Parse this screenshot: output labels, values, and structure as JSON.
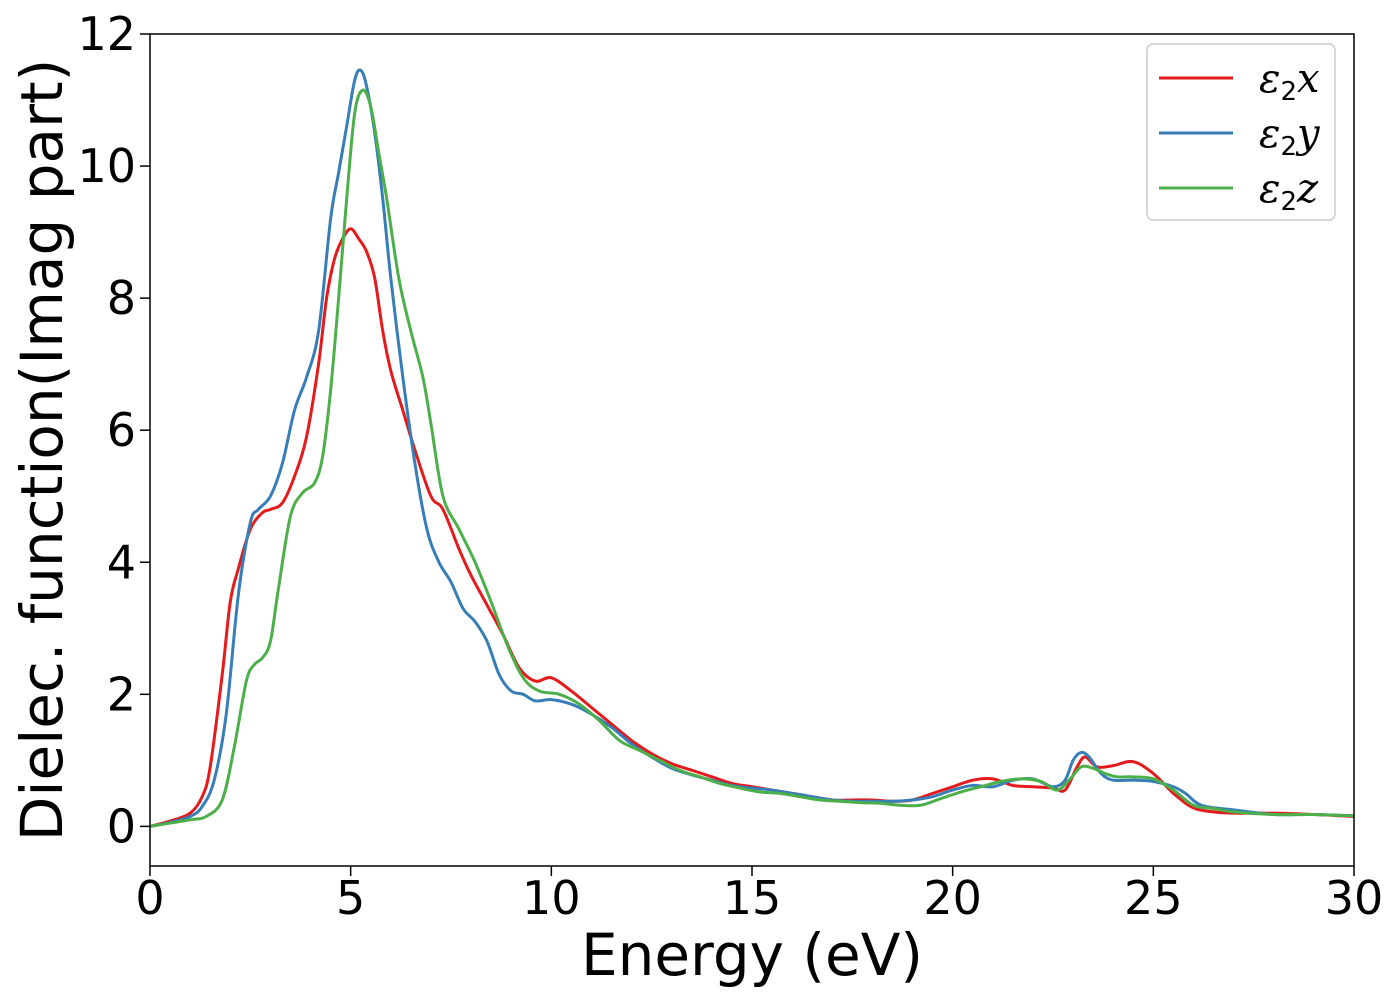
{
  "chart_data": {
    "type": "line",
    "title": "",
    "xlabel": "Energy (eV)",
    "ylabel": "Dielec. function(Imag part)",
    "xlim": [
      0,
      30
    ],
    "ylim": [
      -0.6,
      12
    ],
    "xticks": [
      0,
      5,
      10,
      15,
      20,
      25,
      30
    ],
    "yticks": [
      0,
      2,
      4,
      6,
      8,
      10,
      12
    ],
    "grid": false,
    "legend_position": "top-right",
    "series": [
      {
        "name": "ε2x",
        "legend": {
          "symbol": "ε",
          "sub": "2",
          "axis": "x"
        },
        "color": "#e41a1c",
        "x": [
          0,
          0.5,
          1.0,
          1.3,
          1.5,
          1.8,
          2.0,
          2.2,
          2.5,
          2.8,
          3.0,
          3.3,
          3.6,
          3.9,
          4.2,
          4.4,
          4.6,
          4.8,
          5.0,
          5.2,
          5.4,
          5.6,
          5.8,
          6.0,
          6.3,
          6.6,
          7.0,
          7.3,
          7.7,
          8.0,
          8.4,
          8.8,
          9.2,
          9.6,
          10.0,
          10.5,
          11.0,
          11.5,
          12.0,
          12.5,
          13.0,
          13.5,
          14.0,
          14.5,
          15.0,
          15.5,
          16.0,
          16.5,
          17.0,
          17.5,
          18.0,
          18.5,
          19.0,
          19.5,
          20.0,
          20.5,
          21.0,
          21.5,
          22.0,
          22.5,
          22.8,
          23.1,
          23.3,
          23.6,
          24.0,
          24.5,
          25.0,
          25.5,
          26.0,
          26.5,
          27.0,
          28.0,
          29.0,
          30.0
        ],
        "y": [
          0,
          0.08,
          0.2,
          0.45,
          0.9,
          2.3,
          3.4,
          3.9,
          4.5,
          4.75,
          4.8,
          4.9,
          5.3,
          5.9,
          7.0,
          8.0,
          8.6,
          8.9,
          9.05,
          8.9,
          8.7,
          8.3,
          7.5,
          6.9,
          6.3,
          5.7,
          5.0,
          4.8,
          4.2,
          3.8,
          3.35,
          2.9,
          2.4,
          2.2,
          2.25,
          2.05,
          1.8,
          1.55,
          1.3,
          1.1,
          0.95,
          0.85,
          0.75,
          0.65,
          0.6,
          0.55,
          0.5,
          0.45,
          0.4,
          0.4,
          0.4,
          0.38,
          0.4,
          0.5,
          0.6,
          0.7,
          0.72,
          0.62,
          0.6,
          0.58,
          0.55,
          0.9,
          1.05,
          0.9,
          0.92,
          0.98,
          0.8,
          0.5,
          0.28,
          0.22,
          0.2,
          0.2,
          0.18,
          0.15
        ]
      },
      {
        "name": "ε2y",
        "legend": {
          "symbol": "ε",
          "sub": "2",
          "axis": "y"
        },
        "color": "#377eb8",
        "x": [
          0,
          0.5,
          1.0,
          1.3,
          1.6,
          1.9,
          2.2,
          2.5,
          2.7,
          3.0,
          3.3,
          3.6,
          3.9,
          4.2,
          4.5,
          4.7,
          4.9,
          5.1,
          5.25,
          5.4,
          5.6,
          5.8,
          6.0,
          6.3,
          6.6,
          6.9,
          7.2,
          7.5,
          7.8,
          8.1,
          8.4,
          8.7,
          9.0,
          9.3,
          9.6,
          10.0,
          10.5,
          11.0,
          11.5,
          12.0,
          12.5,
          13.0,
          13.5,
          14.0,
          14.5,
          15.0,
          15.5,
          16.0,
          16.5,
          17.0,
          17.5,
          18.0,
          18.5,
          19.0,
          19.5,
          20.0,
          20.5,
          21.0,
          21.5,
          22.0,
          22.5,
          22.8,
          23.0,
          23.2,
          23.4,
          23.7,
          24.0,
          24.5,
          25.0,
          25.5,
          25.8,
          26.2,
          27.0,
          28.0,
          29.0,
          30.0
        ],
        "y": [
          0,
          0.06,
          0.15,
          0.3,
          0.7,
          1.7,
          3.5,
          4.6,
          4.8,
          5.0,
          5.5,
          6.3,
          6.8,
          7.5,
          9.2,
          9.9,
          10.6,
          11.3,
          11.45,
          11.2,
          10.5,
          9.5,
          8.3,
          6.8,
          5.5,
          4.5,
          4.0,
          3.7,
          3.3,
          3.1,
          2.8,
          2.3,
          2.05,
          2.0,
          1.9,
          1.92,
          1.85,
          1.7,
          1.5,
          1.25,
          1.05,
          0.88,
          0.78,
          0.7,
          0.62,
          0.58,
          0.55,
          0.5,
          0.45,
          0.4,
          0.38,
          0.38,
          0.38,
          0.4,
          0.45,
          0.55,
          0.62,
          0.6,
          0.7,
          0.72,
          0.6,
          0.7,
          1.0,
          1.12,
          1.05,
          0.8,
          0.7,
          0.7,
          0.68,
          0.6,
          0.5,
          0.32,
          0.25,
          0.18,
          0.18,
          0.16
        ]
      },
      {
        "name": "ε2z",
        "legend": {
          "symbol": "ε",
          "sub": "2",
          "axis": "z"
        },
        "color": "#4daf4a",
        "x": [
          0,
          0.5,
          1.0,
          1.4,
          1.8,
          2.1,
          2.4,
          2.6,
          2.8,
          3.0,
          3.2,
          3.5,
          3.8,
          4.1,
          4.3,
          4.5,
          4.7,
          4.9,
          5.1,
          5.3,
          5.5,
          5.7,
          5.9,
          6.2,
          6.5,
          6.8,
          7.0,
          7.3,
          7.7,
          8.1,
          8.5,
          8.9,
          9.3,
          9.7,
          10.2,
          10.7,
          11.2,
          11.7,
          12.2,
          12.7,
          13.2,
          13.7,
          14.2,
          14.7,
          15.2,
          15.7,
          16.2,
          16.7,
          17.2,
          17.7,
          18.2,
          18.7,
          19.2,
          19.7,
          20.2,
          20.7,
          21.2,
          21.7,
          22.2,
          22.6,
          22.9,
          23.2,
          23.5,
          23.8,
          24.1,
          24.5,
          25.0,
          25.5,
          26.0,
          26.5,
          27.0,
          28.0,
          29.0,
          30.0
        ],
        "y": [
          0,
          0.05,
          0.1,
          0.15,
          0.4,
          1.2,
          2.2,
          2.45,
          2.55,
          2.8,
          3.6,
          4.7,
          5.05,
          5.2,
          5.6,
          6.6,
          8.0,
          9.5,
          10.8,
          11.15,
          10.9,
          10.2,
          9.5,
          8.3,
          7.5,
          6.8,
          6.1,
          5.0,
          4.5,
          4.0,
          3.4,
          2.75,
          2.25,
          2.05,
          2.0,
          1.85,
          1.6,
          1.3,
          1.15,
          1.0,
          0.85,
          0.75,
          0.65,
          0.58,
          0.52,
          0.5,
          0.45,
          0.4,
          0.38,
          0.36,
          0.35,
          0.32,
          0.32,
          0.42,
          0.52,
          0.6,
          0.68,
          0.72,
          0.68,
          0.55,
          0.7,
          0.9,
          0.88,
          0.8,
          0.75,
          0.75,
          0.72,
          0.55,
          0.32,
          0.27,
          0.22,
          0.18,
          0.18,
          0.16
        ]
      }
    ]
  }
}
